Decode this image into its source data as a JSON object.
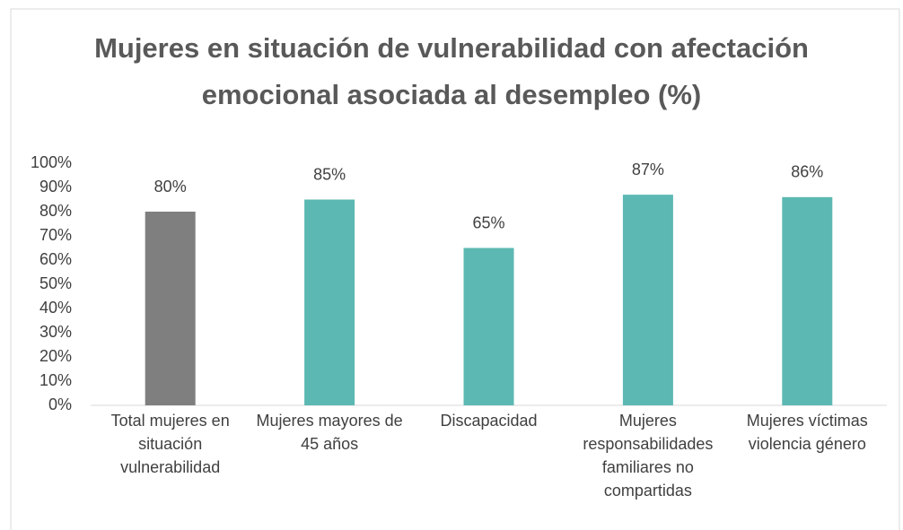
{
  "chart_data": {
    "type": "bar",
    "title": "Mujeres en situación de vulnerabilidad con afectación emocional asociada al desempleo (%)",
    "categories": [
      "Total mujeres en situación vulnerabilidad",
      "Mujeres mayores de 45 años",
      "Discapacidad",
      "Mujeres responsabilidades familiares no compartidas",
      "Mujeres víctimas violencia género"
    ],
    "values": [
      80,
      85,
      65,
      87,
      86
    ],
    "value_labels": [
      "80%",
      "85%",
      "65%",
      "87%",
      "86%"
    ],
    "colors": [
      "#7f7f7f",
      "#5cb8b2",
      "#5cb8b2",
      "#5cb8b2",
      "#5cb8b2"
    ],
    "ylim": [
      0,
      100
    ],
    "yticks": [
      {
        "value": 0,
        "label": "0%"
      },
      {
        "value": 10,
        "label": "10%"
      },
      {
        "value": 20,
        "label": "20%"
      },
      {
        "value": 30,
        "label": "30%"
      },
      {
        "value": 40,
        "label": "40%"
      },
      {
        "value": 50,
        "label": "50%"
      },
      {
        "value": 60,
        "label": "60%"
      },
      {
        "value": 70,
        "label": "70%"
      },
      {
        "value": 80,
        "label": "80%"
      },
      {
        "value": 90,
        "label": "90%"
      },
      {
        "value": 100,
        "label": "100%"
      }
    ],
    "grid": false
  }
}
